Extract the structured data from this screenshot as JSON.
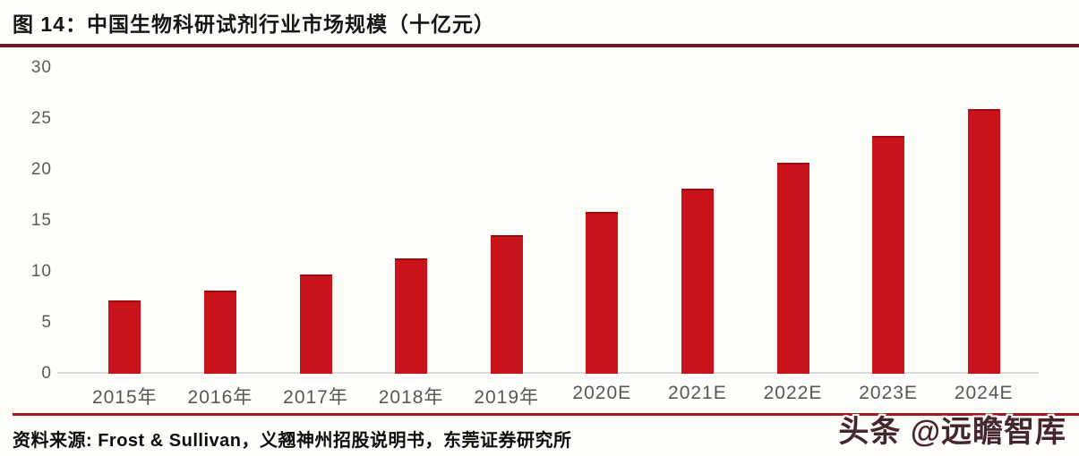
{
  "header": {
    "title": "图 14：中国生物科研试剂行业市场规模（十亿元）"
  },
  "footer": {
    "source": "资料来源: Frost & Sullivan，义翘神州招股说明书，东莞证券研究所",
    "watermark": "头条 @远瞻智库"
  },
  "colors": {
    "background": "#FFFEF8",
    "bar": "#C9121A",
    "title_rule": "#6E1527",
    "footer_rule": "#A6161C",
    "axis_text": "#595959",
    "axis_line": "#D9D9D9"
  },
  "chart_data": {
    "type": "bar",
    "title": "中国生物科研试剂行业市场规模（十亿元）",
    "categories": [
      "2015年",
      "2016年",
      "2017年",
      "2018年",
      "2019年",
      "2020E",
      "2021E",
      "2022E",
      "2023E",
      "2024E"
    ],
    "values": [
      7.2,
      8.2,
      9.7,
      11.3,
      13.6,
      15.9,
      18.2,
      20.7,
      23.3,
      26.0
    ],
    "xlabel": "",
    "ylabel": "",
    "ylim": [
      0,
      30
    ],
    "yticks": [
      0,
      5,
      10,
      15,
      20,
      25,
      30
    ],
    "grid": false,
    "legend": false,
    "bar_color": "#C9121A"
  }
}
